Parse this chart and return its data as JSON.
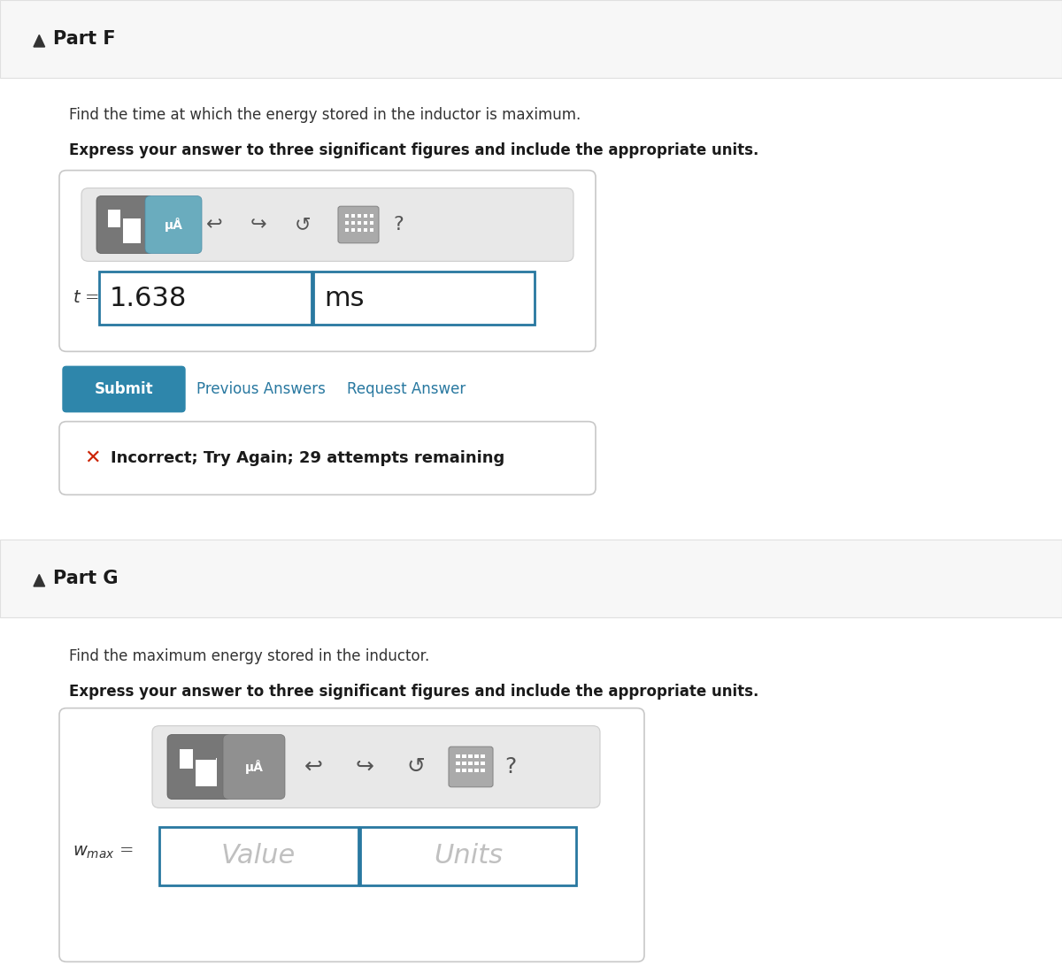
{
  "bg_color": "#ffffff",
  "header_bg": "#f7f7f7",
  "part_f_label": "Part F",
  "part_g_label": "Part G",
  "part_f_desc": "Find the time at which the energy stored in the inductor is maximum.",
  "part_f_bold": "Express your answer to three significant figures and include the appropriate units.",
  "part_g_desc": "Find the maximum energy stored in the inductor.",
  "part_g_bold": "Express your answer to three significant figures and include the appropriate units.",
  "t_value": "1.638",
  "t_unit": "ms",
  "wmax_value": "Value",
  "wmax_unit": "Units",
  "submit_bg": "#2e86ab",
  "submit_text": "Submit",
  "prev_answers": "Previous Answers",
  "request_answer": "Request Answer",
  "error_text": "Incorrect; Try Again; 29 attempts remaining",
  "input_border": "#2878a0",
  "outer_box_border": "#c8c8c8",
  "triangle_color": "#333333",
  "link_color": "#2878a0",
  "error_color": "#cc2200",
  "toolbar_bg": "#e8e8e8",
  "toolbar_border": "#cccccc",
  "btn1_color": "#777777",
  "btn2_color_f": "#6aacbe",
  "btn2_color_g": "#909090",
  "icon_color": "#555555",
  "header_border": "#e0e0e0",
  "outer_box_bg": "#ffffff",
  "figw": 12.0,
  "figh": 11.08,
  "dpi": 100
}
